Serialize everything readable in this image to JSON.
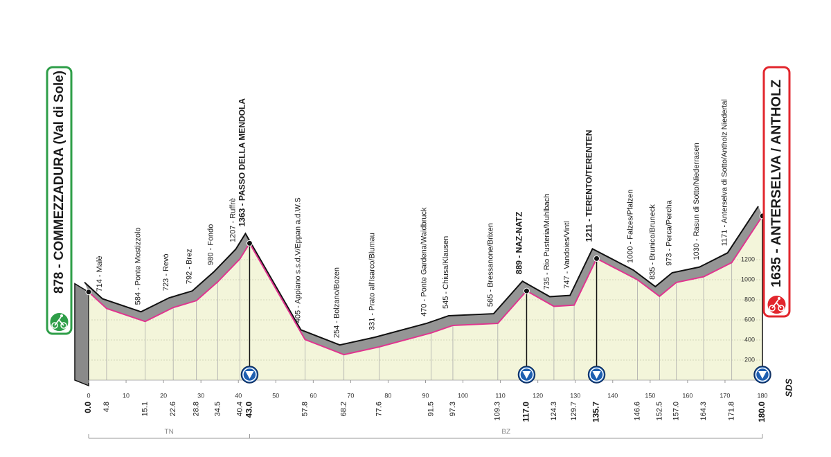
{
  "chart_data": {
    "type": "area",
    "x": [
      0,
      4.8,
      15.1,
      22.6,
      28.8,
      34.5,
      40.4,
      43.0,
      57.8,
      68.2,
      77.6,
      91.5,
      97.3,
      109.3,
      117.0,
      124.3,
      129.7,
      135.7,
      146.6,
      152.5,
      157.0,
      164.3,
      171.8,
      180.0
    ],
    "x_labels": [
      "0.0",
      "4.8",
      "15.1",
      "22.6",
      "28.8",
      "34.5",
      "40.4",
      "43.0",
      "57.8",
      "68.2",
      "77.6",
      "91.5",
      "97.3",
      "109.3",
      "117.0",
      "124.3",
      "129.7",
      "135.7",
      "146.6",
      "152.5",
      "157.0",
      "164.3",
      "171.8",
      "180.0"
    ],
    "values": [
      878,
      714,
      584,
      723,
      792,
      980,
      1207,
      1363,
      405,
      254,
      331,
      470,
      545,
      565,
      889,
      735,
      747,
      1211,
      1000,
      835,
      973,
      1030,
      1171,
      1635
    ],
    "value_labels": [
      "878 - COMMEZZADURA (Val di Sole)",
      "714 - Malè",
      "584 - Ponte Mostizzolo",
      "723 - Revò",
      "792 - Brez",
      "980 - Fondo",
      "1207 - Ruffrè",
      "1363 - PASSO DELLA MENDOLA",
      "405 - Appiano s.s.d.V/Eppan a.d.W.S",
      "254 - Bolzano/Bozen",
      "331 - Prato all'Isarco/Blumau",
      "470 - Ponte Gardena/Waidbruck",
      "545 - Chiusa/Klausen",
      "565 - Bressanone/Brixen",
      "889 - NAZ-NATZ",
      "735 - Rio Pusteria/Muhlbach",
      "747 - Vandoies/Vintl",
      "1211 - TERENTO/TERENTEN",
      "1000 - Falzes/Pfalzen",
      "835 - Brunico/Bruneck",
      "973 - Perca/Percha",
      "1030 - Rasun di Sotto/Niederrasen",
      "1171 - Anterselva di Sotto/Antholz Niedertal",
      "1635 - ANTERSELVA / ANTHOLZ"
    ],
    "bold": [
      true,
      false,
      false,
      false,
      false,
      false,
      false,
      true,
      false,
      false,
      false,
      false,
      false,
      false,
      true,
      false,
      false,
      true,
      false,
      false,
      false,
      false,
      false,
      true
    ],
    "marker": [
      false,
      false,
      false,
      false,
      false,
      false,
      false,
      true,
      false,
      false,
      false,
      false,
      false,
      false,
      true,
      false,
      false,
      true,
      false,
      false,
      false,
      false,
      false,
      true
    ],
    "color": "#e0358f",
    "xlim": [
      0,
      180
    ],
    "xticks": [
      0,
      10,
      20,
      30,
      40,
      50,
      60,
      70,
      80,
      90,
      100,
      110,
      120,
      130,
      140,
      150,
      160,
      170,
      180
    ],
    "ylim": [
      0,
      2000
    ],
    "yticks": [
      200,
      400,
      600,
      800,
      1000,
      1200
    ],
    "grid": true,
    "regions": [
      {
        "label": "TN",
        "from": 0,
        "to": 43.0
      },
      {
        "label": "BZ",
        "from": 43.0,
        "to": 180.0
      }
    ],
    "logo": "SDS"
  }
}
